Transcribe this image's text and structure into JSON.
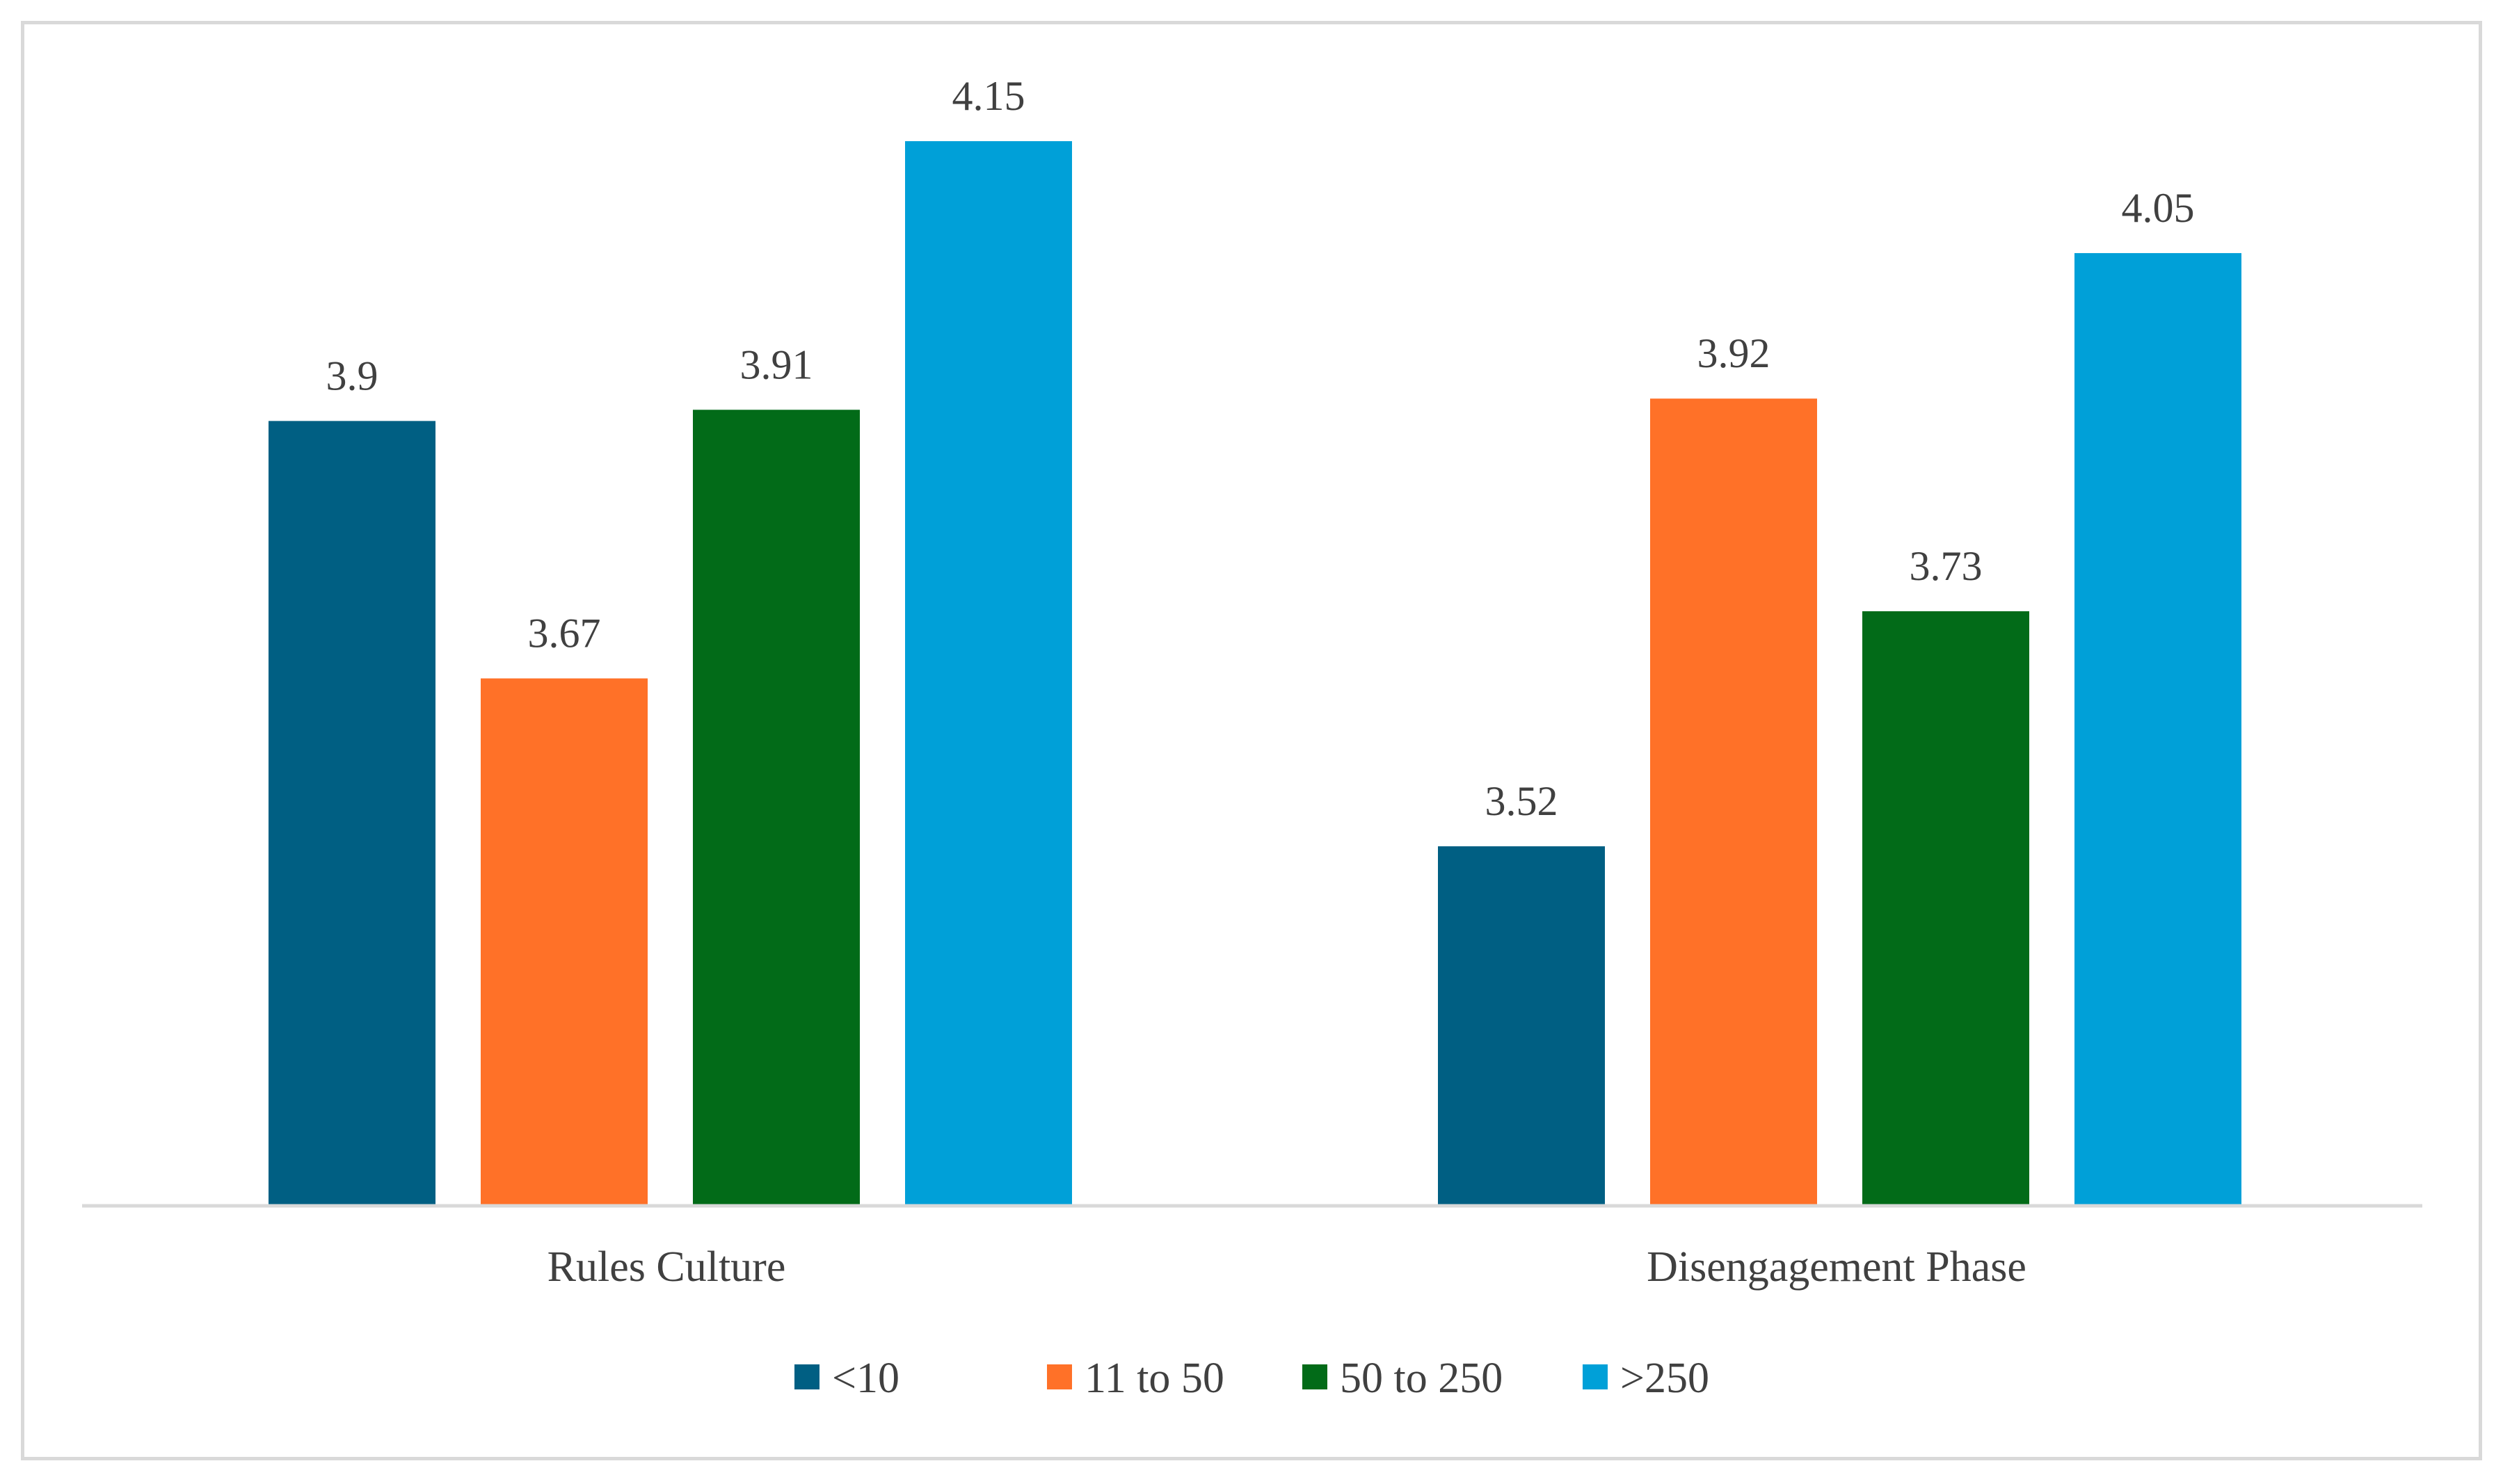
{
  "chart_data": {
    "type": "bar",
    "title": "",
    "xlabel": "",
    "ylabel": "",
    "categories": [
      "Rules Culture",
      "Disengagement Phase"
    ],
    "series": [
      {
        "name": "<10",
        "color": "#005f83",
        "values": [
          3.9,
          3.52
        ]
      },
      {
        "name": "11 to 50",
        "color": "#ff7128",
        "values": [
          3.67,
          3.92
        ]
      },
      {
        "name": "50 to 250",
        "color": "#026b18",
        "values": [
          3.91,
          3.73
        ]
      },
      {
        "name": ">250",
        "color": "#00a0d8",
        "values": [
          4.15,
          4.05
        ]
      }
    ],
    "data_labels": [
      [
        "3.9",
        "3.52"
      ],
      [
        "3.67",
        "3.92"
      ],
      [
        "3.91",
        "3.73"
      ],
      [
        "4.15",
        "4.05"
      ]
    ],
    "ylim": [
      3.2,
      4.15
    ],
    "y_axis_visible": false,
    "grid": false,
    "legend_position": "bottom"
  }
}
